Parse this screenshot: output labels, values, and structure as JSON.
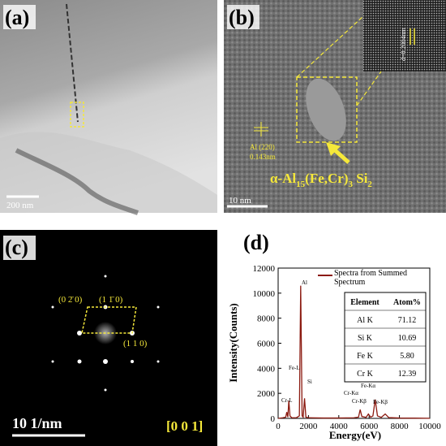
{
  "panels": {
    "a": {
      "label": "(a)",
      "scale_bar": "200 nm"
    },
    "b": {
      "label": "(b)",
      "scale_bar": "10 nm",
      "inset_text": "d=0.2004nm",
      "lattice_plane": "Al (220)",
      "lattice_spacing": "0.143nm",
      "phase": [
        "α-Al",
        "15",
        "(Fe,Cr)",
        "3",
        " Si",
        "2"
      ]
    },
    "c": {
      "label": "(c)",
      "scale_bar": "10 1/nm",
      "zone_axis": "[0 0 1]",
      "spots": [
        "(0 2̄ 0)",
        "(1 1̄ 0)",
        "(1 1 0)"
      ]
    },
    "d": {
      "label": "(d)",
      "peaks": [
        "Cr-L",
        "Fe-L",
        "Al",
        "Si",
        "Cr-Kα",
        "Cr-Kβ",
        "Fe-Kα",
        "Fe-Kβ"
      ],
      "table": {
        "header": [
          "Element",
          "Atom%"
        ],
        "rows": [
          [
            "Al K",
            "71.12"
          ],
          [
            "Si K",
            "10.69"
          ],
          [
            "Fe K",
            "5.80"
          ],
          [
            "Cr K",
            "12.39"
          ]
        ]
      }
    }
  },
  "chart_data": {
    "type": "line",
    "x_label": "Energy(eV)",
    "y_label": "Intensity(Counts)",
    "x": [
      0,
      300,
      500,
      570,
      640,
      705,
      780,
      900,
      1200,
      1400,
      1487,
      1580,
      1650,
      1740,
      1830,
      2000,
      3000,
      4000,
      5000,
      5300,
      5410,
      5520,
      5800,
      5950,
      6100,
      6250,
      6400,
      6550,
      6800,
      7060,
      7300,
      8000,
      9000,
      10000
    ],
    "series": [
      {
        "name": "Spectra from Summed Spectrum",
        "color": "#8b1a10",
        "values": [
          0,
          50,
          100,
          500,
          100,
          1400,
          200,
          50,
          50,
          200,
          10600,
          200,
          100,
          1600,
          100,
          50,
          30,
          30,
          50,
          100,
          700,
          150,
          80,
          350,
          100,
          200,
          1500,
          200,
          80,
          350,
          60,
          30,
          20,
          10
        ]
      }
    ],
    "xlim": [
      0,
      10000
    ],
    "xticks": [
      0,
      2000,
      4000,
      6000,
      8000,
      10000
    ],
    "ylim": [
      0,
      12000
    ],
    "yticks": [
      0,
      2000,
      4000,
      6000,
      8000,
      10000,
      12000
    ]
  }
}
